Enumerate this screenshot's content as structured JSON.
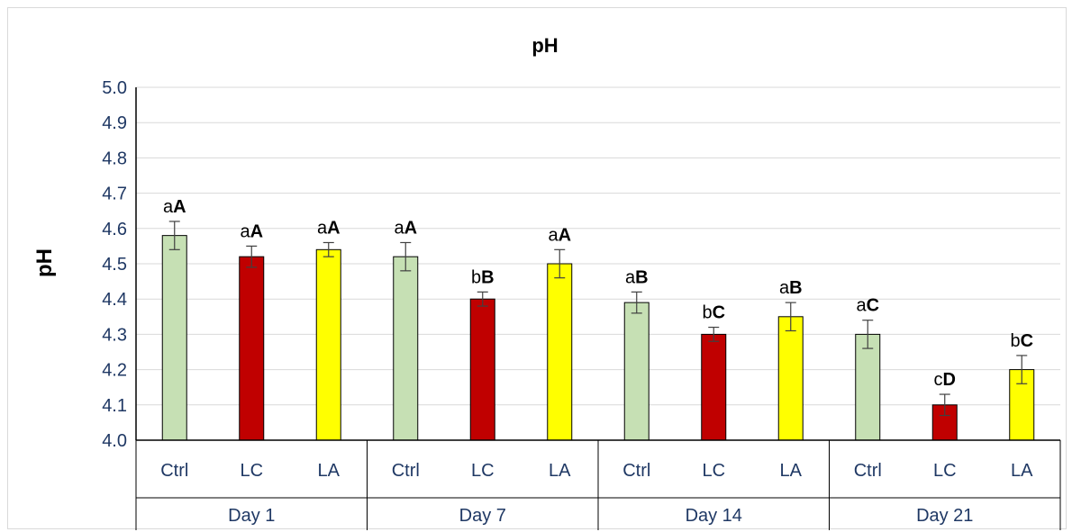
{
  "chart_data": {
    "type": "bar",
    "title": "pH",
    "ylabel": "pH",
    "xlabel": "",
    "ylim": [
      4.0,
      5.0
    ],
    "yticks": [
      "4.0",
      "4.1",
      "4.2",
      "4.3",
      "4.4",
      "4.5",
      "4.6",
      "4.7",
      "4.8",
      "4.9",
      "5.0"
    ],
    "grid": true,
    "groups": [
      "Day 1",
      "Day 7",
      "Day 14",
      "Day 21"
    ],
    "categories": [
      "Ctrl",
      "LC",
      "LA"
    ],
    "colors": {
      "Ctrl": "#c6e0b4",
      "LC": "#c00000",
      "LA": "#ffff00"
    },
    "bars": [
      {
        "group": "Day 1",
        "category": "Ctrl",
        "value": 4.58,
        "error": 0.04,
        "letter_lower": "a",
        "letter_upper": "A"
      },
      {
        "group": "Day 1",
        "category": "LC",
        "value": 4.52,
        "error": 0.03,
        "letter_lower": "a",
        "letter_upper": "A"
      },
      {
        "group": "Day 1",
        "category": "LA",
        "value": 4.54,
        "error": 0.02,
        "letter_lower": "a",
        "letter_upper": "A"
      },
      {
        "group": "Day 7",
        "category": "Ctrl",
        "value": 4.52,
        "error": 0.04,
        "letter_lower": "a",
        "letter_upper": "A"
      },
      {
        "group": "Day 7",
        "category": "LC",
        "value": 4.4,
        "error": 0.02,
        "letter_lower": "b",
        "letter_upper": "B"
      },
      {
        "group": "Day 7",
        "category": "LA",
        "value": 4.5,
        "error": 0.04,
        "letter_lower": "a",
        "letter_upper": "A"
      },
      {
        "group": "Day 14",
        "category": "Ctrl",
        "value": 4.39,
        "error": 0.03,
        "letter_lower": "a",
        "letter_upper": "B"
      },
      {
        "group": "Day 14",
        "category": "LC",
        "value": 4.3,
        "error": 0.02,
        "letter_lower": "b",
        "letter_upper": "C"
      },
      {
        "group": "Day 14",
        "category": "LA",
        "value": 4.35,
        "error": 0.04,
        "letter_lower": "a",
        "letter_upper": "B"
      },
      {
        "group": "Day 21",
        "category": "Ctrl",
        "value": 4.3,
        "error": 0.04,
        "letter_lower": "a",
        "letter_upper": "C"
      },
      {
        "group": "Day 21",
        "category": "LC",
        "value": 4.1,
        "error": 0.03,
        "letter_lower": "c",
        "letter_upper": "D"
      },
      {
        "group": "Day 21",
        "category": "LA",
        "value": 4.2,
        "error": 0.04,
        "letter_lower": "b",
        "letter_upper": "C"
      }
    ]
  }
}
